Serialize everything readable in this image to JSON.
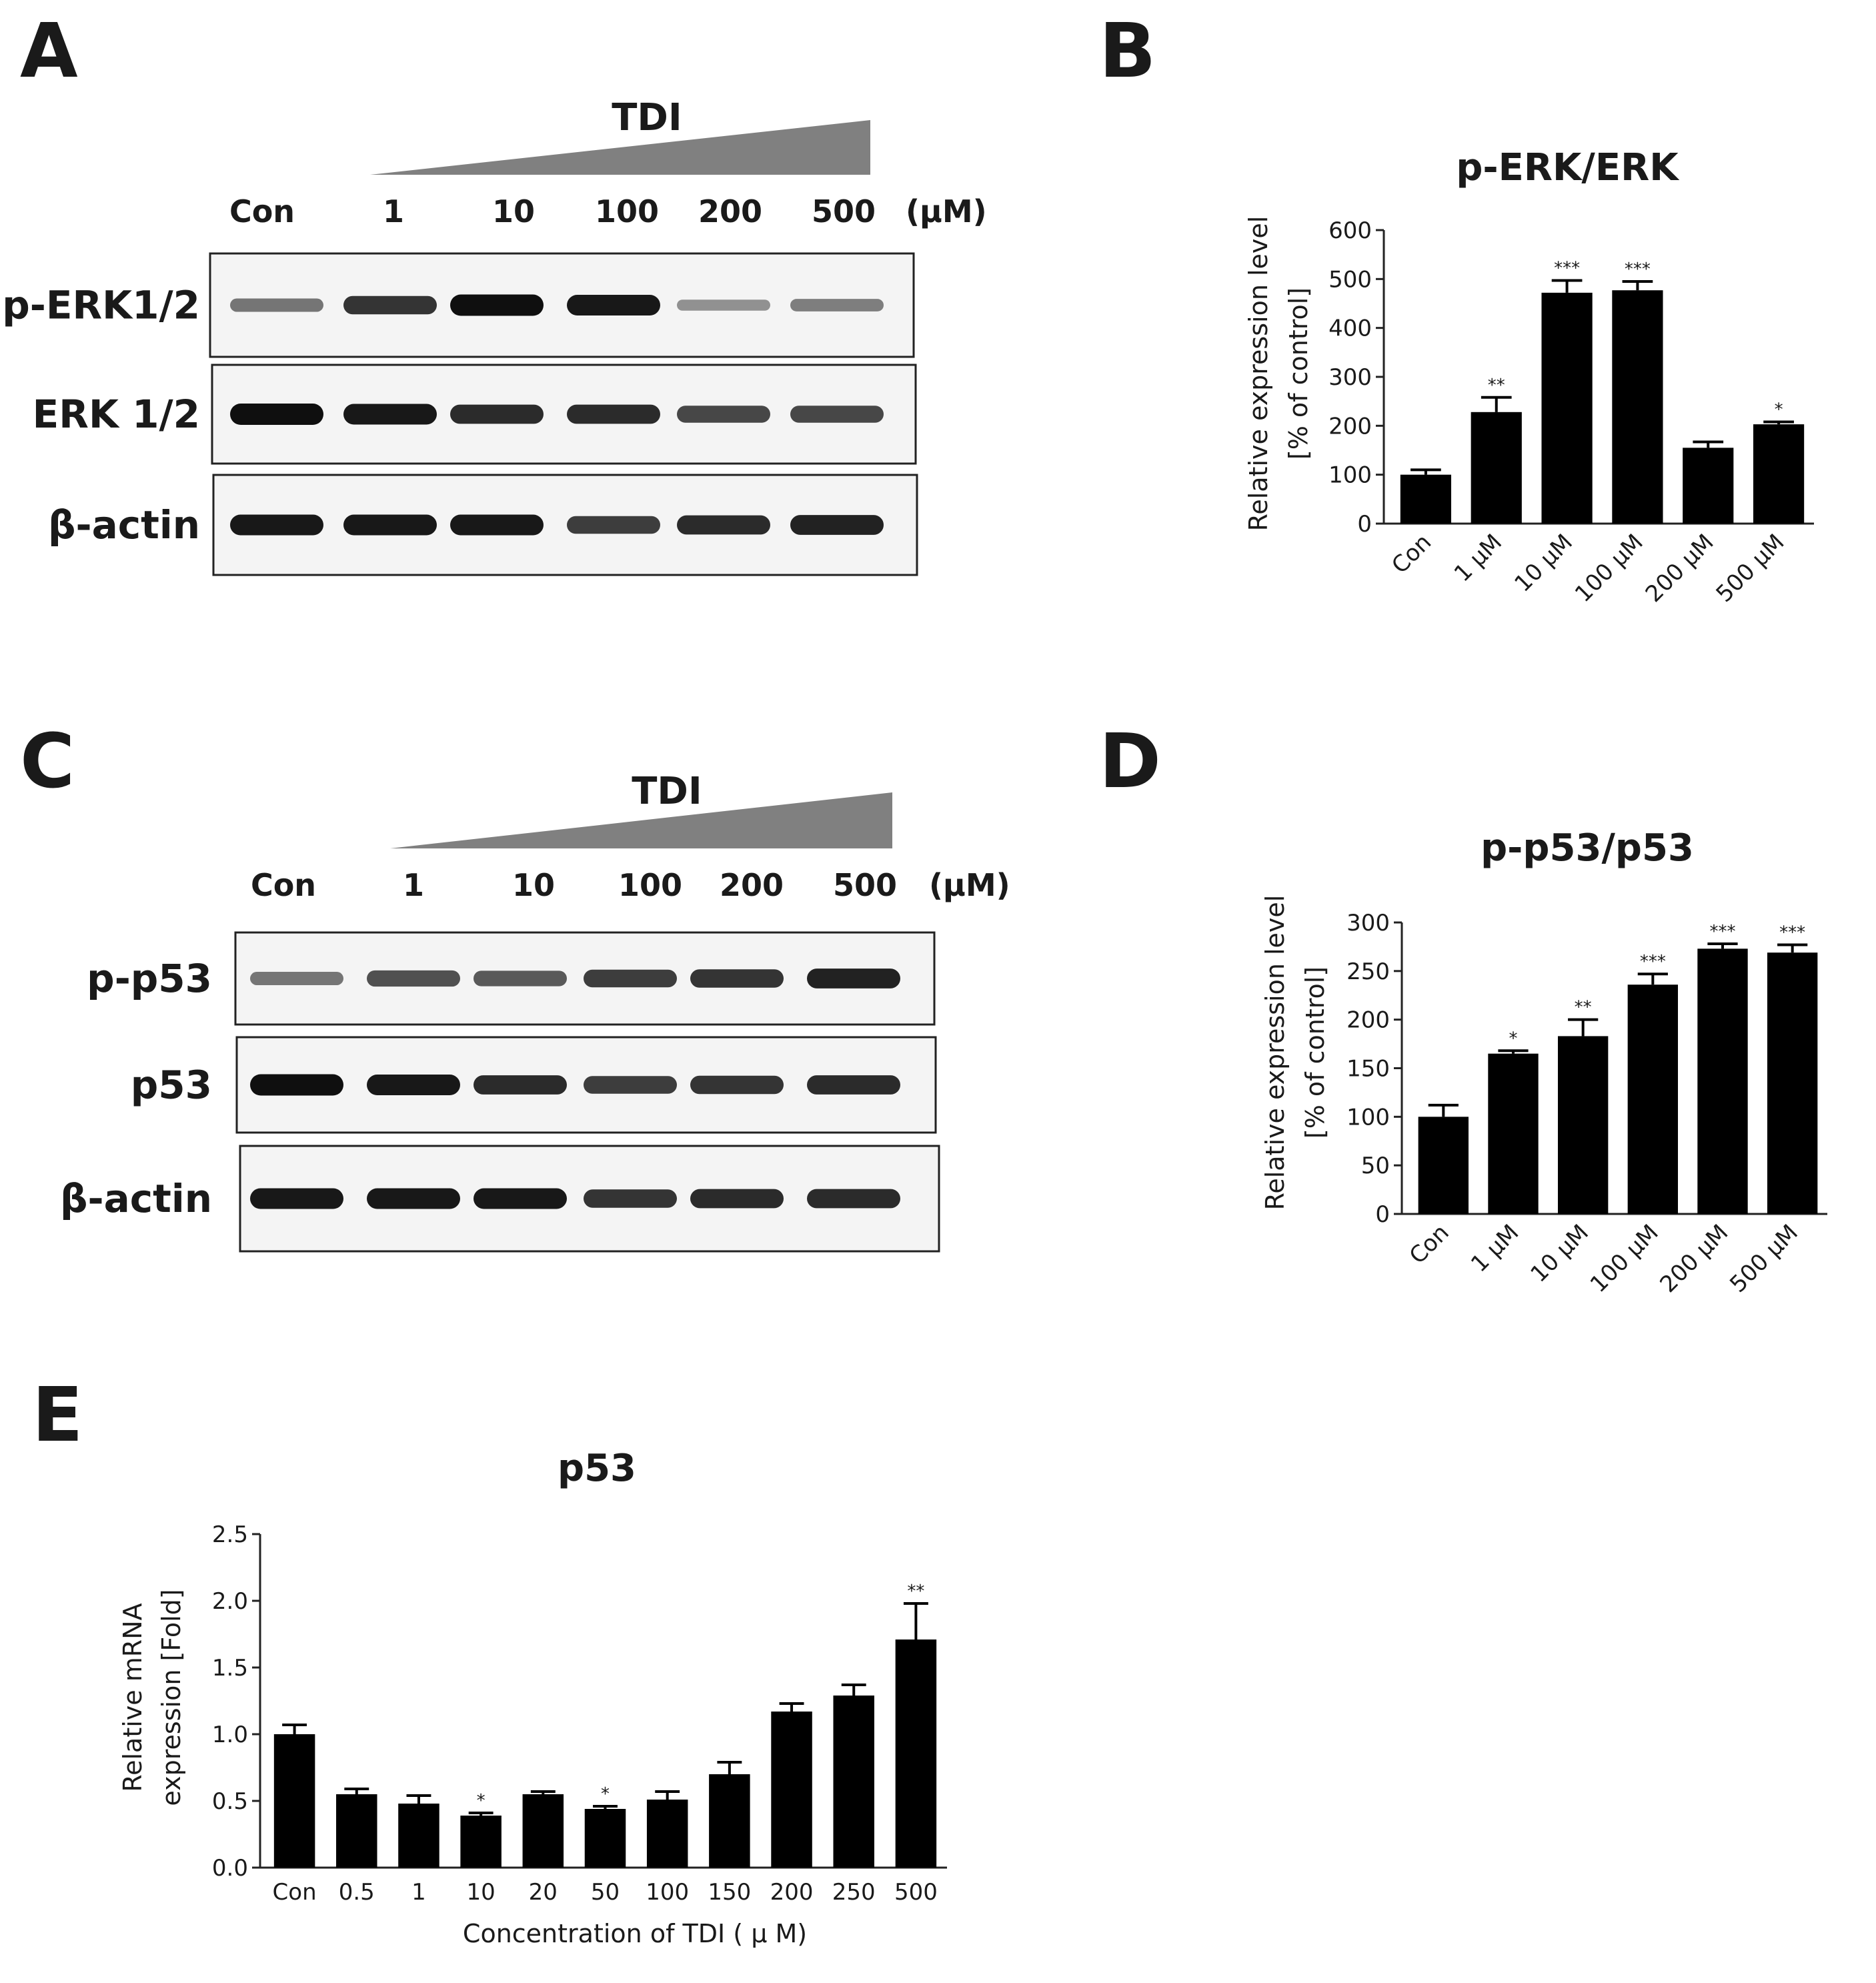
{
  "panels": {
    "A": {
      "letter": "A",
      "treatment": "TDI",
      "unit": "(μM)",
      "lanes": [
        "Con",
        "1",
        "10",
        "100",
        "200",
        "500"
      ],
      "blots": [
        {
          "label": "p-ERK1/2",
          "band_intensity": [
            0.45,
            0.8,
            1.0,
            0.95,
            0.3,
            0.4
          ]
        },
        {
          "label": "ERK 1/2",
          "band_intensity": [
            1.0,
            0.95,
            0.85,
            0.85,
            0.7,
            0.7
          ]
        },
        {
          "label": "β-actin",
          "band_intensity": [
            0.95,
            0.95,
            0.95,
            0.75,
            0.85,
            0.9
          ]
        }
      ]
    },
    "B": {
      "letter": "B"
    },
    "C": {
      "letter": "C",
      "treatment": "TDI",
      "unit": "(μM)",
      "lanes": [
        "Con",
        "1",
        "10",
        "100",
        "200",
        "500"
      ],
      "blots": [
        {
          "label": "p-p53",
          "band_intensity": [
            0.45,
            0.65,
            0.6,
            0.75,
            0.8,
            0.9
          ]
        },
        {
          "label": "p53",
          "band_intensity": [
            1.0,
            0.95,
            0.85,
            0.75,
            0.8,
            0.85
          ]
        },
        {
          "label": "β-actin",
          "band_intensity": [
            0.95,
            0.95,
            0.95,
            0.8,
            0.85,
            0.85
          ]
        }
      ]
    },
    "D": {
      "letter": "D"
    },
    "E": {
      "letter": "E"
    }
  },
  "chart_data": [
    {
      "id": "B",
      "type": "bar",
      "title": "p-ERK/ERK",
      "ylabel": "Relative expression level",
      "ylabel2": "[% of control]",
      "xlabel": "",
      "categories": [
        "Con",
        "1 μM",
        "10 μM",
        "100 μM",
        "200 μM",
        "500 μM"
      ],
      "values": [
        100,
        228,
        472,
        477,
        155,
        203
      ],
      "errors": [
        10,
        30,
        25,
        18,
        12,
        5
      ],
      "significance": [
        "",
        "**",
        "***",
        "***",
        "",
        "*"
      ],
      "ylim": [
        0,
        600
      ],
      "yticks": [
        0,
        100,
        200,
        300,
        400,
        500,
        600
      ],
      "tick_labels_rotated": true
    },
    {
      "id": "D",
      "type": "bar",
      "title": "p-p53/p53",
      "ylabel": "Relative expression level",
      "ylabel2": "[% of control]",
      "xlabel": "",
      "categories": [
        "Con",
        "1 μM",
        "10 μM",
        "100 μM",
        "200 μM",
        "500 μM"
      ],
      "values": [
        100,
        165,
        183,
        236,
        273,
        269
      ],
      "errors": [
        12,
        3,
        17,
        11,
        5,
        8
      ],
      "significance": [
        "",
        "*",
        "**",
        "***",
        "***",
        "***"
      ],
      "ylim": [
        0,
        300
      ],
      "yticks": [
        0,
        50,
        100,
        150,
        200,
        250,
        300
      ],
      "tick_labels_rotated": true
    },
    {
      "id": "E",
      "type": "bar",
      "title": "p53",
      "ylabel": "Relative mRNA",
      "ylabel2": "expression [Fold]",
      "xlabel": "Concentration of TDI ( μ M)",
      "categories": [
        "Con",
        "0.5",
        "1",
        "10",
        "20",
        "50",
        "100",
        "150",
        "200",
        "250",
        "500"
      ],
      "values": [
        1.0,
        0.55,
        0.48,
        0.39,
        0.55,
        0.44,
        0.51,
        0.7,
        1.17,
        1.29,
        1.71
      ],
      "errors": [
        0.07,
        0.04,
        0.06,
        0.02,
        0.02,
        0.02,
        0.06,
        0.09,
        0.06,
        0.08,
        0.27
      ],
      "significance": [
        "",
        "",
        "",
        "*",
        "",
        "*",
        "",
        "",
        "",
        "",
        "**"
      ],
      "ylim": [
        0,
        2.5
      ],
      "yticks": [
        "0.0",
        "0.5",
        "1.0",
        "1.5",
        "2.0",
        "2.5"
      ],
      "tick_labels_rotated": false
    }
  ]
}
